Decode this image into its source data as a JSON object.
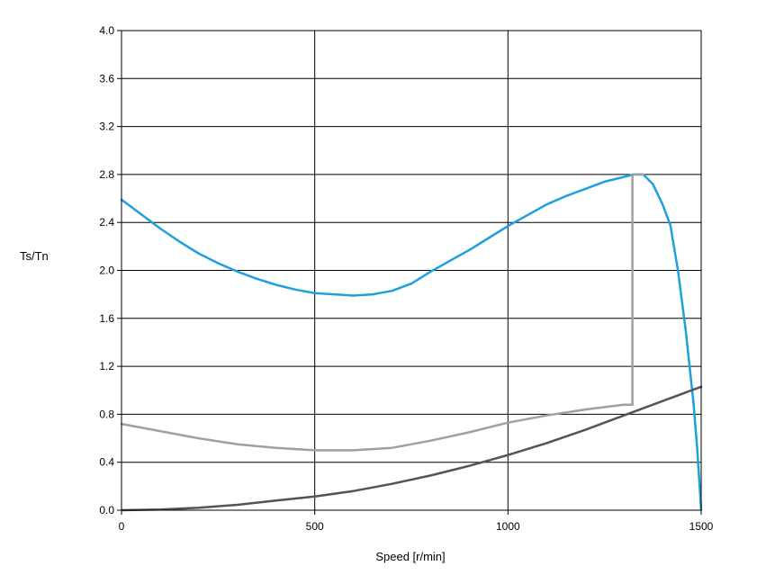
{
  "chart_data": {
    "type": "line",
    "title": "",
    "xlabel": "Speed [r/min]",
    "ylabel": "Ts/Tn",
    "xlim": [
      0,
      1500
    ],
    "ylim": [
      0,
      4.0
    ],
    "grid": true,
    "x_ticks": [
      0,
      500,
      1000,
      1500
    ],
    "x_tick_labels": [
      "0",
      "500",
      "1000",
      "1500"
    ],
    "y_ticks": [
      0,
      0.4,
      0.8,
      1.2,
      1.6,
      2.0,
      2.4,
      2.8,
      3.2,
      3.6,
      4.0
    ],
    "y_tick_labels": [
      "0.0",
      "0.4",
      "0.8",
      "1.2",
      "1.6",
      "2.0",
      "2.4",
      "2.8",
      "3.2",
      "3.6",
      "4.0"
    ],
    "series": [
      {
        "color": "#1ea0dc",
        "points": [
          [
            0,
            2.59
          ],
          [
            50,
            2.47
          ],
          [
            100,
            2.35
          ],
          [
            150,
            2.24
          ],
          [
            200,
            2.14
          ],
          [
            250,
            2.06
          ],
          [
            300,
            1.99
          ],
          [
            350,
            1.93
          ],
          [
            400,
            1.88
          ],
          [
            450,
            1.84
          ],
          [
            500,
            1.81
          ],
          [
            550,
            1.8
          ],
          [
            600,
            1.79
          ],
          [
            650,
            1.8
          ],
          [
            700,
            1.83
          ],
          [
            750,
            1.89
          ],
          [
            800,
            1.99
          ],
          [
            850,
            2.08
          ],
          [
            900,
            2.17
          ],
          [
            950,
            2.27
          ],
          [
            1000,
            2.37
          ],
          [
            1050,
            2.46
          ],
          [
            1100,
            2.55
          ],
          [
            1150,
            2.62
          ],
          [
            1200,
            2.68
          ],
          [
            1250,
            2.74
          ],
          [
            1300,
            2.78
          ],
          [
            1325,
            2.8
          ],
          [
            1350,
            2.8
          ],
          [
            1375,
            2.72
          ],
          [
            1400,
            2.55
          ],
          [
            1420,
            2.38
          ],
          [
            1440,
            2.0
          ],
          [
            1460,
            1.5
          ],
          [
            1480,
            0.9
          ],
          [
            1490,
            0.5
          ],
          [
            1500,
            0.0
          ]
        ]
      },
      {
        "color": "#a0a0a0",
        "points": [
          [
            0,
            0.72
          ],
          [
            100,
            0.66
          ],
          [
            200,
            0.6
          ],
          [
            300,
            0.55
          ],
          [
            400,
            0.52
          ],
          [
            500,
            0.5
          ],
          [
            600,
            0.5
          ],
          [
            700,
            0.52
          ],
          [
            800,
            0.58
          ],
          [
            900,
            0.65
          ],
          [
            1000,
            0.73
          ],
          [
            1100,
            0.79
          ],
          [
            1200,
            0.84
          ],
          [
            1250,
            0.86
          ],
          [
            1300,
            0.88
          ],
          [
            1322,
            0.88
          ],
          [
            1322,
            2.8
          ],
          [
            1350,
            2.8
          ]
        ]
      },
      {
        "color": "#5a5055",
        "points": [
          [
            0,
            0.0
          ],
          [
            100,
            0.005
          ],
          [
            200,
            0.02
          ],
          [
            300,
            0.045
          ],
          [
            400,
            0.08
          ],
          [
            500,
            0.115
          ],
          [
            600,
            0.16
          ],
          [
            700,
            0.22
          ],
          [
            800,
            0.29
          ],
          [
            900,
            0.37
          ],
          [
            1000,
            0.46
          ],
          [
            1100,
            0.56
          ],
          [
            1200,
            0.67
          ],
          [
            1300,
            0.79
          ],
          [
            1400,
            0.91
          ],
          [
            1500,
            1.03
          ]
        ]
      }
    ]
  }
}
